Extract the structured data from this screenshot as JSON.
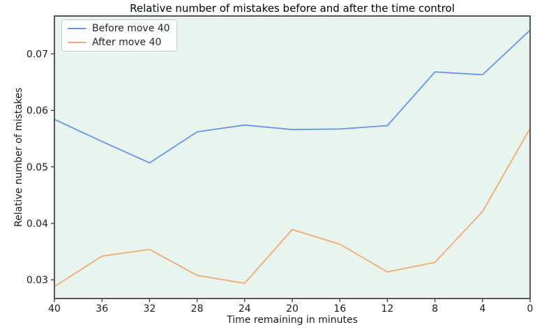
{
  "figure": {
    "background_color": "#ffffff",
    "plot_background_color": "#e8f4ee",
    "spine_color": "#565656",
    "tick_color": "#262626",
    "text_color": "#1a1a1a"
  },
  "chart_data": {
    "type": "line",
    "title": "Relative number of mistakes before and after the time control",
    "xlabel": "Time remaining in minutes",
    "ylabel": "Relative number of mistakes",
    "x": [
      40,
      36,
      32,
      28,
      24,
      20,
      16,
      12,
      8,
      4,
      0
    ],
    "series": [
      {
        "name": "Before move 40",
        "color": "#6495ED",
        "values": [
          0.0584,
          0.0545,
          0.0507,
          0.0562,
          0.0574,
          0.0566,
          0.0567,
          0.0573,
          0.0668,
          0.0663,
          0.0742
        ]
      },
      {
        "name": "After move 40",
        "color": "#F5A873",
        "values": [
          0.0288,
          0.0342,
          0.0354,
          0.0308,
          0.0294,
          0.0389,
          0.0363,
          0.0314,
          0.0331,
          0.0421,
          0.0568
        ]
      }
    ],
    "xlim": [
      40,
      0
    ],
    "ylim": [
      0.0267,
      0.0767
    ],
    "x_axis_reversed": true,
    "x_ticks": [
      40,
      36,
      32,
      28,
      24,
      20,
      16,
      12,
      8,
      4,
      0
    ],
    "x_tick_labels": [
      "40",
      "36",
      "32",
      "28",
      "24",
      "20",
      "16",
      "12",
      "8",
      "4",
      "0"
    ],
    "y_ticks": [
      0.03,
      0.04,
      0.05,
      0.06,
      0.07
    ],
    "y_tick_labels": [
      "0.03",
      "0.04",
      "0.05",
      "0.06",
      "0.07"
    ],
    "grid": false,
    "legend_position": "upper-left",
    "line_width": 1.8
  }
}
